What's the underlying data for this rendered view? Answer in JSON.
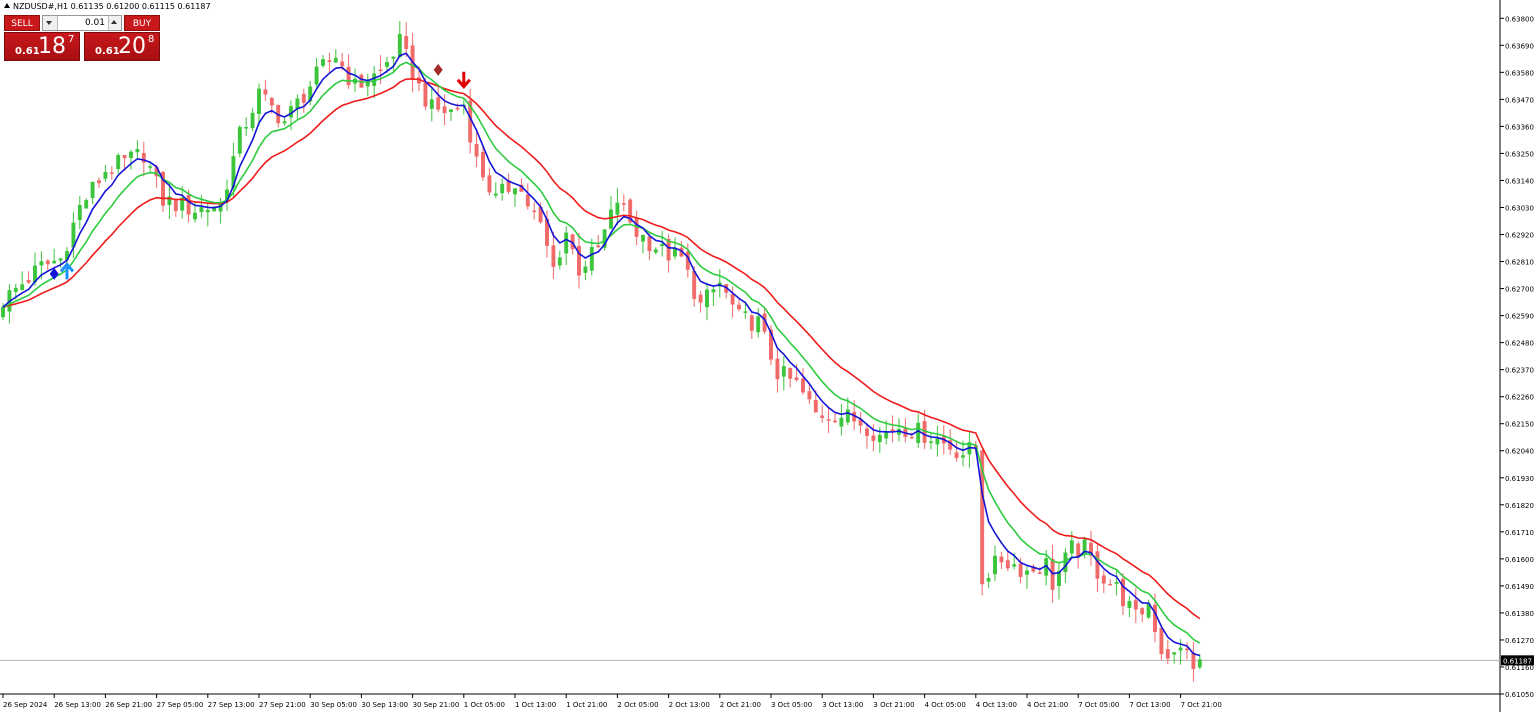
{
  "header": {
    "text": "NZDUSD#,H1  0.61135 0.61200 0.61115 0.61187"
  },
  "trade_panel": {
    "sell_label": "SELL",
    "buy_label": "BUY",
    "lot": "0.01",
    "sell_price": {
      "small": "0.61",
      "big": "18",
      "sup": "7"
    },
    "buy_price": {
      "small": "0.61",
      "big": "20",
      "sup": "8"
    }
  },
  "colors": {
    "bull": "#3cc43c",
    "bear": "#f06a6a",
    "ema_fast": "#1414d8",
    "ema_mid": "#2ecc40",
    "ema_slow": "#ee1c1c",
    "buy_arrow": "#1e90ff",
    "sell_arrow": "#e00000"
  },
  "chart_data": {
    "type": "candlestick",
    "symbol": "NZDUSD#",
    "timeframe": "H1",
    "current_price": "0.61187",
    "ylim": [
      0.6105,
      0.6385
    ],
    "y_ticks": [
      "0.63800",
      "0.63690",
      "0.63580",
      "0.63470",
      "0.63360",
      "0.63250",
      "0.63140",
      "0.63030",
      "0.62920",
      "0.62810",
      "0.62700",
      "0.62590",
      "0.62480",
      "0.62370",
      "0.62260",
      "0.62150",
      "0.62040",
      "0.61930",
      "0.61820",
      "0.61710",
      "0.61600",
      "0.61490",
      "0.61380",
      "0.61270",
      "0.61160",
      "0.61050"
    ],
    "x_ticks": [
      "26 Sep 2024",
      "26 Sep 13:00",
      "26 Sep 21:00",
      "27 Sep 05:00",
      "27 Sep 13:00",
      "27 Sep 21:00",
      "30 Sep 05:00",
      "30 Sep 13:00",
      "30 Sep 21:00",
      "1 Oct 05:00",
      "1 Oct 13:00",
      "1 Oct 21:00",
      "2 Oct 05:00",
      "2 Oct 13:00",
      "2 Oct 21:00",
      "3 Oct 05:00",
      "3 Oct 13:00",
      "3 Oct 21:00",
      "4 Oct 05:00",
      "4 Oct 13:00",
      "4 Oct 21:00",
      "7 Oct 05:00",
      "7 Oct 13:00",
      "7 Oct 21:00"
    ],
    "bars_per_tick": 8,
    "close_path": [
      [
        0,
        0.6265
      ],
      [
        6,
        0.6279
      ],
      [
        9,
        0.6282
      ],
      [
        12,
        0.6303
      ],
      [
        16,
        0.6318
      ],
      [
        22,
        0.6325
      ],
      [
        25,
        0.6306
      ],
      [
        30,
        0.6302
      ],
      [
        34,
        0.6304
      ],
      [
        37,
        0.6332
      ],
      [
        40,
        0.6349
      ],
      [
        44,
        0.6338
      ],
      [
        47,
        0.6349
      ],
      [
        50,
        0.636
      ],
      [
        52,
        0.6365
      ],
      [
        55,
        0.6352
      ],
      [
        59,
        0.6358
      ],
      [
        62,
        0.637
      ],
      [
        65,
        0.6352
      ],
      [
        67,
        0.6343
      ],
      [
        70,
        0.6342
      ],
      [
        72,
        0.6345
      ],
      [
        74,
        0.6322
      ],
      [
        77,
        0.6306
      ],
      [
        80,
        0.6314
      ],
      [
        84,
        0.6295
      ],
      [
        86,
        0.6278
      ],
      [
        88,
        0.6293
      ],
      [
        90,
        0.6278
      ],
      [
        93,
        0.6286
      ],
      [
        96,
        0.6306
      ],
      [
        99,
        0.6293
      ],
      [
        103,
        0.6285
      ],
      [
        106,
        0.6282
      ],
      [
        109,
        0.6263
      ],
      [
        112,
        0.6272
      ],
      [
        115,
        0.6258
      ],
      [
        118,
        0.6256
      ],
      [
        121,
        0.6236
      ],
      [
        124,
        0.6231
      ],
      [
        127,
        0.6219
      ],
      [
        130,
        0.6219
      ],
      [
        134,
        0.6216
      ],
      [
        137,
        0.621
      ],
      [
        140,
        0.6214
      ],
      [
        145,
        0.621
      ],
      [
        150,
        0.6203
      ],
      [
        152,
        0.6205
      ],
      [
        153,
        0.6152
      ],
      [
        156,
        0.616
      ],
      [
        160,
        0.6155
      ],
      [
        163,
        0.6158
      ],
      [
        164,
        0.615
      ],
      [
        167,
        0.6164
      ],
      [
        169,
        0.6164
      ],
      [
        171,
        0.6155
      ],
      [
        174,
        0.6148
      ],
      [
        177,
        0.6136
      ],
      [
        179,
        0.6142
      ],
      [
        181,
        0.6123
      ],
      [
        183,
        0.612
      ],
      [
        185,
        0.6125
      ],
      [
        186,
        0.6113
      ],
      [
        187,
        0.6119
      ]
    ],
    "ema_periods": {
      "fast": 5,
      "mid": 10,
      "slow": 20
    },
    "annotations": [
      {
        "kind": "diamond",
        "bar": 8,
        "price": 0.6276,
        "color": "#1414d8"
      },
      {
        "kind": "arrow-up",
        "bar": 10,
        "price": 0.6277,
        "color": "#1e90ff"
      },
      {
        "kind": "diamond",
        "bar": 68,
        "price": 0.6359,
        "color": "#a52a2a"
      },
      {
        "kind": "arrow-down",
        "bar": 72,
        "price": 0.6355,
        "color": "#e00000"
      }
    ],
    "grid": false
  }
}
